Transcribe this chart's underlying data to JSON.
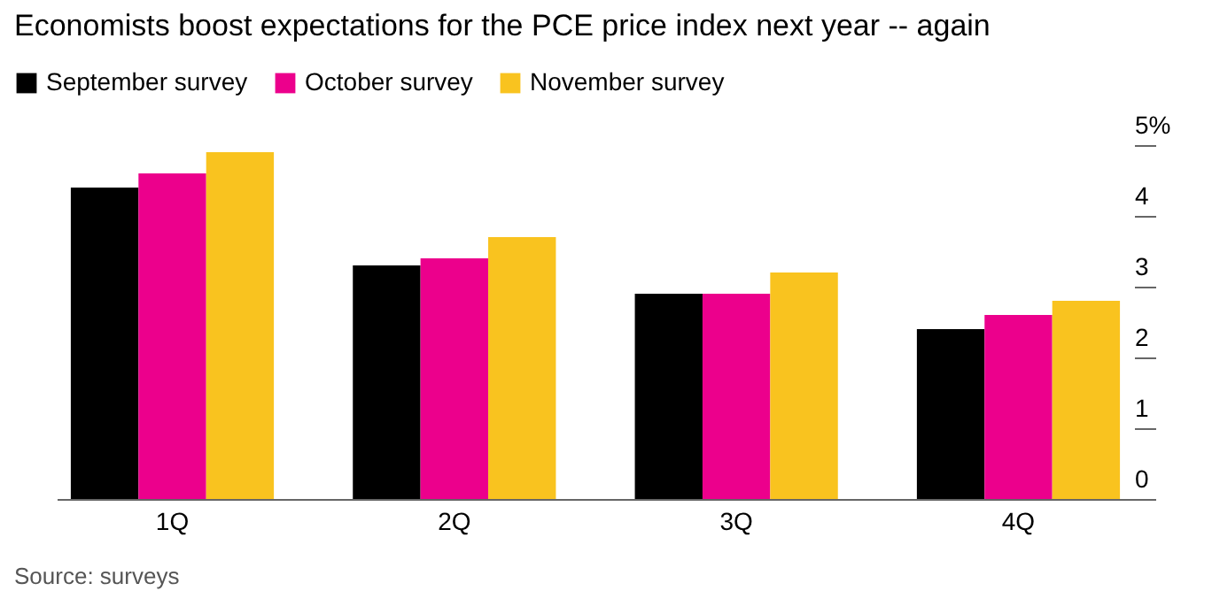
{
  "chart_data": {
    "type": "bar",
    "title": "Economists boost expectations for the PCE price index next year -- again",
    "categories": [
      "1Q",
      "2Q",
      "3Q",
      "4Q"
    ],
    "series": [
      {
        "name": "September survey",
        "color": "#000000",
        "values": [
          4.4,
          3.3,
          2.9,
          2.4
        ]
      },
      {
        "name": "October survey",
        "color": "#ec008c",
        "values": [
          4.6,
          3.4,
          2.9,
          2.6
        ]
      },
      {
        "name": "November survey",
        "color": "#f9c31f",
        "values": [
          4.9,
          3.7,
          3.2,
          2.8
        ]
      }
    ],
    "ylim": [
      0,
      5
    ],
    "yticks": [
      0,
      1,
      2,
      3,
      4,
      {
        "value": 5,
        "label": "5%"
      }
    ],
    "grid": false,
    "legend": "top left",
    "annotations": [
      "Source: surveys"
    ]
  }
}
